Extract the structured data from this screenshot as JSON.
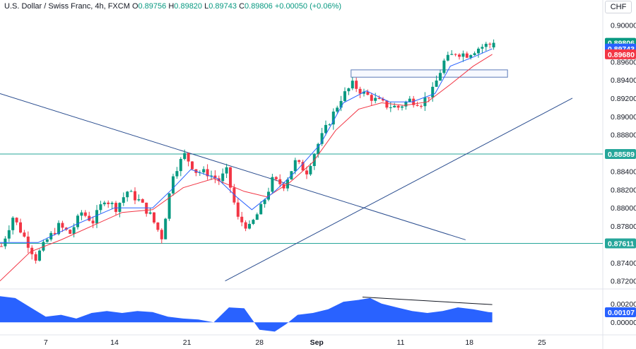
{
  "header": {
    "symbol": "U.S. Dollar / Swiss Franc, 4h, FXCM",
    "o_label": "O",
    "o": "0.89756",
    "h_label": "H",
    "h": "0.89820",
    "l_label": "L",
    "l": "0.89743",
    "c_label": "C",
    "c": "0.89806",
    "change": "+0.00050 (+0.06%)"
  },
  "currency_button": "CHF",
  "colors": {
    "up": "#089981",
    "down": "#f23645",
    "ma_fast": "#2962ff",
    "ma_slow": "#f23645",
    "level_line": "#26a69a",
    "trend_line": "#2a4d8f",
    "oscillator": "#2962ff"
  },
  "chart_data": [
    {
      "type": "candlestick",
      "x_axis": {
        "ticks": [
          "7",
          "14",
          "21",
          "28",
          "Sep",
          "11",
          "18",
          "25"
        ]
      },
      "y_axis": {
        "range": [
          0.8712,
          0.9012
        ],
        "ticks": [
          "0.90000",
          "0.89600",
          "0.89400",
          "0.89200",
          "0.89000",
          "0.88800",
          "0.88600",
          "0.88400",
          "0.88200",
          "0.88000",
          "0.87800",
          "0.87400",
          "0.87200"
        ]
      },
      "price_tags": [
        {
          "label": "0.89806",
          "value": 0.89806,
          "color": "#089981"
        },
        {
          "label": "0.89743",
          "value": 0.89743,
          "color": "#2962ff"
        },
        {
          "label": "0.89680",
          "value": 0.8968,
          "color": "#f23645"
        },
        {
          "label": "0.88589",
          "value": 0.88589,
          "color": "#26a69a"
        },
        {
          "label": "0.87611",
          "value": 0.87611,
          "color": "#26a69a"
        }
      ],
      "horizontal_levels": [
        0.88589,
        0.87611
      ],
      "close_path": [
        [
          0,
          0.8758
        ],
        [
          3,
          0.879
        ],
        [
          6,
          0.8768
        ],
        [
          9,
          0.8745
        ],
        [
          12,
          0.8765
        ],
        [
          15,
          0.878
        ],
        [
          18,
          0.8772
        ],
        [
          21,
          0.8795
        ],
        [
          24,
          0.8785
        ],
        [
          27,
          0.881
        ],
        [
          30,
          0.88
        ],
        [
          33,
          0.8818
        ],
        [
          36,
          0.8808
        ],
        [
          39,
          0.8792
        ],
        [
          42,
          0.8768
        ],
        [
          45,
          0.8838
        ],
        [
          48,
          0.8858
        ],
        [
          51,
          0.884
        ],
        [
          54,
          0.8838
        ],
        [
          57,
          0.883
        ],
        [
          59,
          0.884
        ],
        [
          62,
          0.8788
        ],
        [
          65,
          0.8778
        ],
        [
          68,
          0.88
        ],
        [
          71,
          0.883
        ],
        [
          74,
          0.8825
        ],
        [
          77,
          0.885
        ],
        [
          80,
          0.884
        ],
        [
          83,
          0.887
        ],
        [
          86,
          0.8895
        ],
        [
          89,
          0.892
        ],
        [
          92,
          0.8935
        ],
        [
          95,
          0.8925
        ],
        [
          98,
          0.8918
        ],
        [
          101,
          0.8912
        ],
        [
          104,
          0.891
        ],
        [
          107,
          0.8918
        ],
        [
          110,
          0.8915
        ],
        [
          113,
          0.8928
        ],
        [
          116,
          0.896
        ],
        [
          119,
          0.897
        ],
        [
          122,
          0.8968
        ],
        [
          125,
          0.8975
        ],
        [
          127,
          0.8978
        ],
        [
          129,
          0.8981
        ]
      ],
      "ma_fast_path": [
        [
          0,
          0.8762
        ],
        [
          10,
          0.8762
        ],
        [
          20,
          0.8782
        ],
        [
          30,
          0.88
        ],
        [
          40,
          0.88
        ],
        [
          45,
          0.882
        ],
        [
          50,
          0.8842
        ],
        [
          57,
          0.8832
        ],
        [
          62,
          0.8812
        ],
        [
          66,
          0.8798
        ],
        [
          72,
          0.8818
        ],
        [
          78,
          0.8842
        ],
        [
          84,
          0.887
        ],
        [
          90,
          0.8915
        ],
        [
          96,
          0.8928
        ],
        [
          102,
          0.8916
        ],
        [
          108,
          0.8916
        ],
        [
          114,
          0.8925
        ],
        [
          118,
          0.8955
        ],
        [
          124,
          0.8965
        ],
        [
          129,
          0.8974
        ]
      ],
      "ma_slow_path": [
        [
          0,
          0.872
        ],
        [
          8,
          0.8752
        ],
        [
          16,
          0.8765
        ],
        [
          24,
          0.878
        ],
        [
          32,
          0.8795
        ],
        [
          40,
          0.8798
        ],
        [
          48,
          0.8822
        ],
        [
          56,
          0.8832
        ],
        [
          64,
          0.8818
        ],
        [
          70,
          0.8812
        ],
        [
          76,
          0.8828
        ],
        [
          82,
          0.885
        ],
        [
          88,
          0.8885
        ],
        [
          94,
          0.8908
        ],
        [
          100,
          0.8915
        ],
        [
          106,
          0.8912
        ],
        [
          112,
          0.8916
        ],
        [
          118,
          0.8935
        ],
        [
          124,
          0.8955
        ],
        [
          129,
          0.8968
        ]
      ],
      "trend_lines": [
        {
          "from": [
            0,
            0.8925
          ],
          "to": [
            122,
            0.8765
          ]
        },
        {
          "from": [
            59,
            0.872
          ],
          "to": [
            150,
            0.892
          ]
        }
      ],
      "rectangle": {
        "x_from": 92,
        "x_to": 133,
        "y_from": 0.8943,
        "y_to": 0.8951
      }
    },
    {
      "type": "area",
      "y_axis": {
        "range": [
          -0.0012,
          0.0035
        ],
        "ticks": [
          "0.00200",
          "0.00000"
        ]
      },
      "last_value_tag": {
        "label": "0.00107",
        "value": 0.00107,
        "color": "#2962ff"
      },
      "values": [
        [
          0,
          0.0028
        ],
        [
          4,
          0.0026
        ],
        [
          8,
          0.0016
        ],
        [
          12,
          0.0006
        ],
        [
          16,
          0.0008
        ],
        [
          20,
          0.0004
        ],
        [
          24,
          0.001
        ],
        [
          28,
          0.0012
        ],
        [
          32,
          0.001
        ],
        [
          36,
          0.0012
        ],
        [
          40,
          0.0011
        ],
        [
          44,
          0.0006
        ],
        [
          48,
          0.0004
        ],
        [
          52,
          0.0003
        ],
        [
          56,
          0.0
        ],
        [
          60,
          0.0016
        ],
        [
          64,
          0.0015
        ],
        [
          68,
          -0.0008
        ],
        [
          72,
          -0.001
        ],
        [
          75,
          -0.0002
        ],
        [
          78,
          0.0008
        ],
        [
          82,
          0.001
        ],
        [
          86,
          0.0014
        ],
        [
          90,
          0.0022
        ],
        [
          94,
          0.0024
        ],
        [
          97,
          0.0026
        ],
        [
          100,
          0.002
        ],
        [
          104,
          0.0016
        ],
        [
          108,
          0.0012
        ],
        [
          112,
          0.001
        ],
        [
          116,
          0.0012
        ],
        [
          120,
          0.0016
        ],
        [
          124,
          0.0014
        ],
        [
          128,
          0.0011
        ],
        [
          129,
          0.00107
        ]
      ],
      "divergence_line": {
        "from": [
          95,
          0.0027
        ],
        "to": [
          129,
          0.0019
        ]
      }
    }
  ]
}
